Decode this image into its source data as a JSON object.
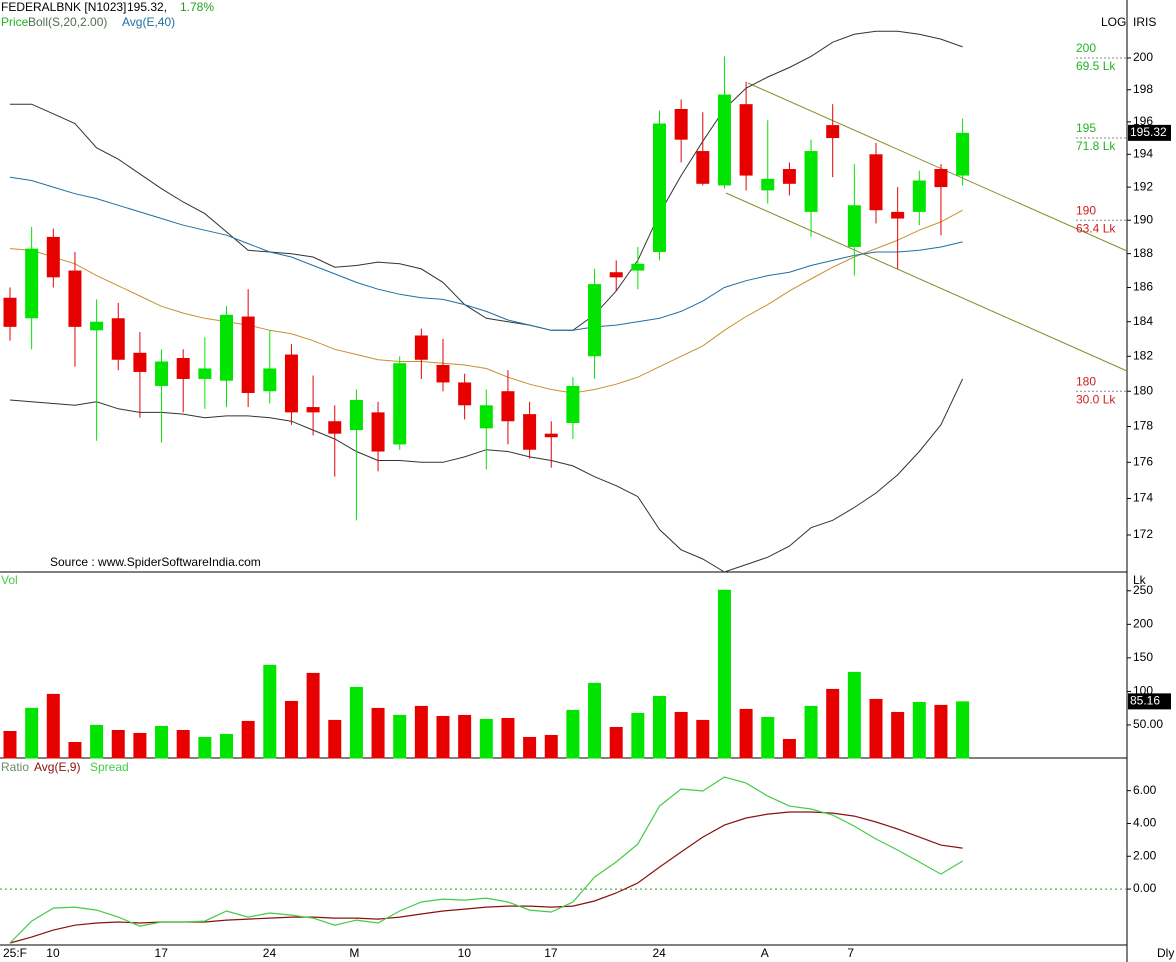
{
  "chart_data": [
    {
      "type": "candlestick",
      "title": "FEDERALBNK [N1023]",
      "price_label": "195.32,",
      "change_label": "1.78%",
      "scale_label": "LOG",
      "corner_label": "IRIS",
      "log_scale": true,
      "source": "Source : www.SpiderSoftwareIndia.com",
      "period_label": "Dly",
      "legend": [
        {
          "name": "Price",
          "color": "#22b422"
        },
        {
          "name": "Boll(S,20,2.00)",
          "color": "#556b55"
        },
        {
          "name": "Avg(E,40)",
          "color": "#1f6fa0"
        }
      ],
      "up_color": "#00e400",
      "down_color": "#e60000",
      "categories": [
        "25:F",
        null,
        "10",
        null,
        null,
        null,
        null,
        "17",
        null,
        null,
        null,
        null,
        "24",
        null,
        null,
        null,
        "M",
        null,
        null,
        null,
        null,
        "10",
        null,
        null,
        null,
        "17",
        null,
        null,
        null,
        null,
        "24",
        null,
        null,
        null,
        null,
        "A",
        null,
        null,
        null,
        "7",
        null,
        null,
        null,
        null,
        null
      ],
      "open": [
        185.4,
        184.2,
        189.0,
        187.0,
        183.5,
        184.2,
        182.2,
        180.3,
        181.9,
        180.7,
        180.6,
        184.3,
        180.0,
        182.1,
        179.1,
        178.3,
        177.8,
        178.8,
        177.0,
        183.2,
        181.5,
        180.5,
        177.9,
        180.0,
        178.7,
        177.6,
        178.2,
        182.0,
        186.9,
        187.0,
        188.1,
        196.8,
        194.2,
        192.1,
        197.1,
        191.8,
        193.1,
        190.5,
        195.8,
        188.4,
        194.0,
        190.5,
        190.5,
        193.1,
        192.7
      ],
      "high": [
        186.0,
        189.6,
        189.5,
        188.1,
        185.3,
        185.1,
        183.4,
        182.4,
        182.4,
        183.1,
        184.9,
        185.9,
        183.5,
        182.7,
        180.9,
        179.2,
        180.1,
        179.4,
        182.0,
        183.6,
        183.0,
        181.0,
        180.1,
        181.2,
        179.4,
        178.3,
        180.8,
        187.1,
        187.6,
        188.4,
        196.7,
        197.4,
        196.6,
        200.1,
        198.5,
        196.1,
        193.5,
        194.9,
        197.1,
        193.4,
        194.7,
        192.0,
        193.0,
        193.4,
        196.2
      ],
      "low": [
        182.9,
        182.4,
        186.0,
        181.4,
        177.2,
        181.2,
        178.5,
        177.1,
        178.8,
        179.0,
        179.1,
        179.1,
        179.3,
        178.1,
        177.5,
        175.2,
        172.8,
        175.5,
        176.7,
        180.7,
        180.0,
        178.4,
        175.6,
        177.0,
        176.2,
        175.7,
        177.3,
        180.7,
        185.8,
        185.9,
        187.6,
        193.5,
        192.1,
        191.9,
        191.8,
        191.0,
        191.5,
        189.0,
        192.6,
        186.7,
        189.8,
        187.1,
        189.7,
        189.1,
        192.1
      ],
      "close": [
        183.7,
        188.3,
        186.6,
        183.7,
        184.0,
        181.8,
        181.1,
        181.7,
        180.7,
        181.3,
        184.4,
        179.9,
        181.3,
        178.8,
        178.8,
        177.6,
        179.5,
        176.6,
        181.6,
        181.8,
        180.5,
        179.2,
        179.2,
        178.3,
        176.7,
        177.4,
        180.3,
        186.2,
        186.6,
        187.4,
        195.9,
        194.9,
        192.2,
        197.7,
        192.7,
        192.5,
        192.2,
        194.2,
        195.0,
        190.9,
        190.6,
        190.1,
        192.4,
        192.0,
        195.32
      ],
      "bollinger": {
        "band_color": "#333333",
        "middle_color": "#c8902e",
        "upper": [
          197.1,
          197.1,
          196.5,
          195.9,
          194.4,
          193.7,
          192.8,
          191.9,
          191.1,
          190.4,
          189.3,
          188.2,
          188.1,
          188.0,
          187.8,
          187.2,
          187.3,
          187.5,
          187.4,
          187.1,
          186.3,
          185.0,
          184.2,
          184.0,
          183.8,
          183.5,
          183.5,
          184.4,
          185.8,
          187.6,
          190.4,
          192.7,
          194.8,
          196.8,
          198.1,
          198.8,
          199.4,
          200.1,
          201.0,
          201.5,
          201.7,
          201.7,
          201.5,
          201.2,
          200.7
        ],
        "middle": [
          188.3,
          188.2,
          187.8,
          187.4,
          186.7,
          186.1,
          185.5,
          184.9,
          184.5,
          184.2,
          184.0,
          183.8,
          183.5,
          183.3,
          182.9,
          182.4,
          182.1,
          181.8,
          181.7,
          181.7,
          181.6,
          181.5,
          181.3,
          180.8,
          180.4,
          180.1,
          179.9,
          180.1,
          180.4,
          180.8,
          181.4,
          182.0,
          182.6,
          183.5,
          184.3,
          185.0,
          185.8,
          186.5,
          187.2,
          187.8,
          188.3,
          188.8,
          189.4,
          189.9,
          190.6
        ],
        "lower": [
          179.5,
          179.4,
          179.3,
          179.2,
          179.4,
          179.0,
          178.8,
          178.8,
          178.7,
          178.5,
          178.6,
          178.6,
          178.5,
          178.3,
          177.8,
          177.3,
          176.6,
          176.1,
          176.1,
          176.0,
          176.0,
          176.3,
          176.7,
          176.6,
          176.3,
          176.1,
          175.8,
          175.2,
          174.7,
          174.1,
          172.3,
          171.2,
          170.7,
          170.0,
          170.4,
          170.8,
          171.4,
          172.4,
          172.8,
          173.5,
          174.3,
          175.3,
          176.6,
          178.1,
          180.7
        ]
      },
      "ema": {
        "color": "#1f6fa0",
        "values": [
          192.6,
          192.4,
          192.0,
          191.6,
          191.3,
          190.9,
          190.5,
          190.1,
          189.7,
          189.4,
          189.1,
          188.6,
          188.1,
          187.8,
          187.3,
          186.8,
          186.3,
          185.9,
          185.6,
          185.4,
          185.3,
          185.0,
          184.6,
          184.1,
          183.8,
          183.5,
          183.5,
          183.7,
          183.8,
          184.0,
          184.2,
          184.6,
          185.2,
          186.0,
          186.4,
          186.7,
          186.9,
          187.3,
          187.6,
          187.9,
          188.1,
          188.1,
          188.2,
          188.4,
          188.7
        ]
      },
      "levels": [
        {
          "value": 200,
          "volume": "69.5 Lk",
          "color": "#22b422"
        },
        {
          "value": 195,
          "volume": "71.8 Lk",
          "color": "#22b422"
        },
        {
          "value": 190,
          "volume": "63.4 Lk",
          "color": "#cc2222"
        },
        {
          "value": 180,
          "volume": "30.0 Lk",
          "color": "#cc2222"
        }
      ],
      "ylim": [
        170,
        203.7
      ],
      "yticks": [
        172,
        174,
        176,
        178,
        180,
        182,
        184,
        186,
        188,
        190,
        192,
        194,
        196,
        198,
        200
      ]
    },
    {
      "type": "bar",
      "title": "Vol",
      "unit_label": "Lk",
      "values": [
        41.0,
        75.4,
        96.3,
        24.6,
        50.0,
        42.5,
        38.1,
        48.5,
        42.5,
        32.1,
        36.6,
        56.0,
        139.6,
        85.8,
        127.6,
        57.5,
        106.7,
        75.4,
        64.9,
        78.4,
        63.4,
        64.9,
        59.0,
        60.4,
        32.1,
        35.1,
        72.4,
        112.7,
        47.0,
        67.9,
        93.3,
        69.4,
        57.5,
        251.5,
        73.9,
        61.9,
        29.1,
        78.4,
        103.7,
        129.1,
        88.8,
        69.4,
        84.3,
        79.9,
        85.16
      ],
      "ylim": [
        0,
        278
      ],
      "yticks": [
        {
          "value": 50,
          "label": "50.00"
        },
        100,
        150,
        200,
        250
      ]
    },
    {
      "type": "line",
      "title": "Ratio",
      "zero_line": true,
      "series": [
        {
          "name": "Avg(E,9)",
          "color": "#8b1010",
          "values": [
            -3.29,
            -2.93,
            -2.5,
            -2.2,
            -2.07,
            -2.01,
            -2.07,
            -2.01,
            -2.01,
            -2.01,
            -1.89,
            -1.83,
            -1.77,
            -1.71,
            -1.71,
            -1.77,
            -1.77,
            -1.83,
            -1.71,
            -1.52,
            -1.34,
            -1.22,
            -1.1,
            -1.04,
            -1.04,
            -1.1,
            -1.04,
            -0.73,
            -0.24,
            0.37,
            1.34,
            2.26,
            3.17,
            3.9,
            4.33,
            4.57,
            4.7,
            4.7,
            4.63,
            4.45,
            4.09,
            3.66,
            3.17,
            2.68,
            2.5
          ]
        },
        {
          "name": "Spread",
          "color": "#44cc44",
          "values": [
            -3.29,
            -1.95,
            -1.16,
            -1.1,
            -1.28,
            -1.71,
            -2.26,
            -2.01,
            -2.01,
            -1.95,
            -1.34,
            -1.71,
            -1.46,
            -1.59,
            -1.77,
            -2.2,
            -1.89,
            -2.07,
            -1.34,
            -0.79,
            -0.61,
            -0.67,
            -0.55,
            -0.79,
            -1.28,
            -1.4,
            -0.79,
            0.73,
            1.65,
            2.74,
            5.06,
            6.1,
            5.98,
            6.83,
            6.46,
            5.67,
            5.06,
            4.88,
            4.51,
            3.84,
            3.05,
            2.38,
            1.65,
            0.91,
            1.71
          ]
        }
      ],
      "ylim": [
        -3.41,
        7.99
      ],
      "yticks": [
        {
          "value": 0,
          "label": "0.00"
        },
        {
          "value": 2,
          "label": "2.00"
        },
        {
          "value": 4,
          "label": "4.00"
        },
        {
          "value": 6,
          "label": "6.00"
        }
      ]
    }
  ]
}
